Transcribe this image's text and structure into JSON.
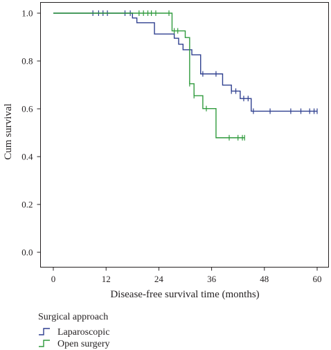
{
  "chart_data": {
    "type": "line",
    "subtype": "kaplan-meier-step",
    "xlabel": "Disease-free survival time (months)",
    "ylabel": "Cum survival",
    "xlim": [
      0,
      60
    ],
    "ylim": [
      0,
      1.0
    ],
    "xticks": [
      "0",
      "12",
      "24",
      "36",
      "48",
      "60"
    ],
    "yticks": [
      "0.0",
      "0.2",
      "0.4",
      "0.6",
      "0.8",
      "1.0"
    ],
    "grid": false,
    "legend": {
      "title": "Surgical approach",
      "placement": "bottom-left",
      "entries": [
        "Laparoscopic",
        "Open surgery"
      ]
    },
    "series": [
      {
        "name": "Laparoscopic",
        "color": "#2e3f8f",
        "steps": [
          [
            0,
            1.0
          ],
          [
            18,
            0.98
          ],
          [
            19,
            0.96
          ],
          [
            23,
            0.913
          ],
          [
            27.5,
            0.895
          ],
          [
            28.5,
            0.87
          ],
          [
            29.5,
            0.847
          ],
          [
            31.5,
            0.826
          ],
          [
            33.5,
            0.746
          ],
          [
            38.5,
            0.699
          ],
          [
            40.5,
            0.674
          ],
          [
            42.5,
            0.643
          ],
          [
            45,
            0.59
          ],
          [
            60,
            0.59
          ]
        ],
        "censored": [
          [
            9,
            1.0
          ],
          [
            10.3,
            1.0
          ],
          [
            11.3,
            1.0
          ],
          [
            12.3,
            1.0
          ],
          [
            16.3,
            1.0
          ],
          [
            17.5,
            1.0
          ],
          [
            34,
            0.746
          ],
          [
            37,
            0.746
          ],
          [
            40.5,
            0.674
          ],
          [
            41.5,
            0.674
          ],
          [
            43.3,
            0.643
          ],
          [
            44.3,
            0.643
          ],
          [
            45.5,
            0.59
          ],
          [
            49.3,
            0.59
          ],
          [
            54,
            0.59
          ],
          [
            56.3,
            0.59
          ],
          [
            58.3,
            0.59
          ],
          [
            59.3,
            0.59
          ],
          [
            60,
            0.59
          ]
        ]
      },
      {
        "name": "Open surgery",
        "color": "#2f9a3c",
        "steps": [
          [
            0,
            1.0
          ],
          [
            27,
            0.926
          ],
          [
            30,
            0.898
          ],
          [
            31,
            0.705
          ],
          [
            32,
            0.655
          ],
          [
            34,
            0.601
          ],
          [
            37,
            0.479
          ],
          [
            43.5,
            0.479
          ]
        ],
        "censored": [
          [
            19.5,
            1.0
          ],
          [
            20.5,
            1.0
          ],
          [
            21.5,
            1.0
          ],
          [
            22.3,
            1.0
          ],
          [
            23.3,
            1.0
          ],
          [
            26.3,
            1.0
          ],
          [
            27.5,
            0.926
          ],
          [
            28.3,
            0.926
          ],
          [
            31,
            0.705
          ],
          [
            32,
            0.655
          ],
          [
            34.8,
            0.601
          ],
          [
            40,
            0.479
          ],
          [
            42,
            0.479
          ],
          [
            43,
            0.479
          ],
          [
            43.5,
            0.479
          ]
        ]
      }
    ]
  }
}
